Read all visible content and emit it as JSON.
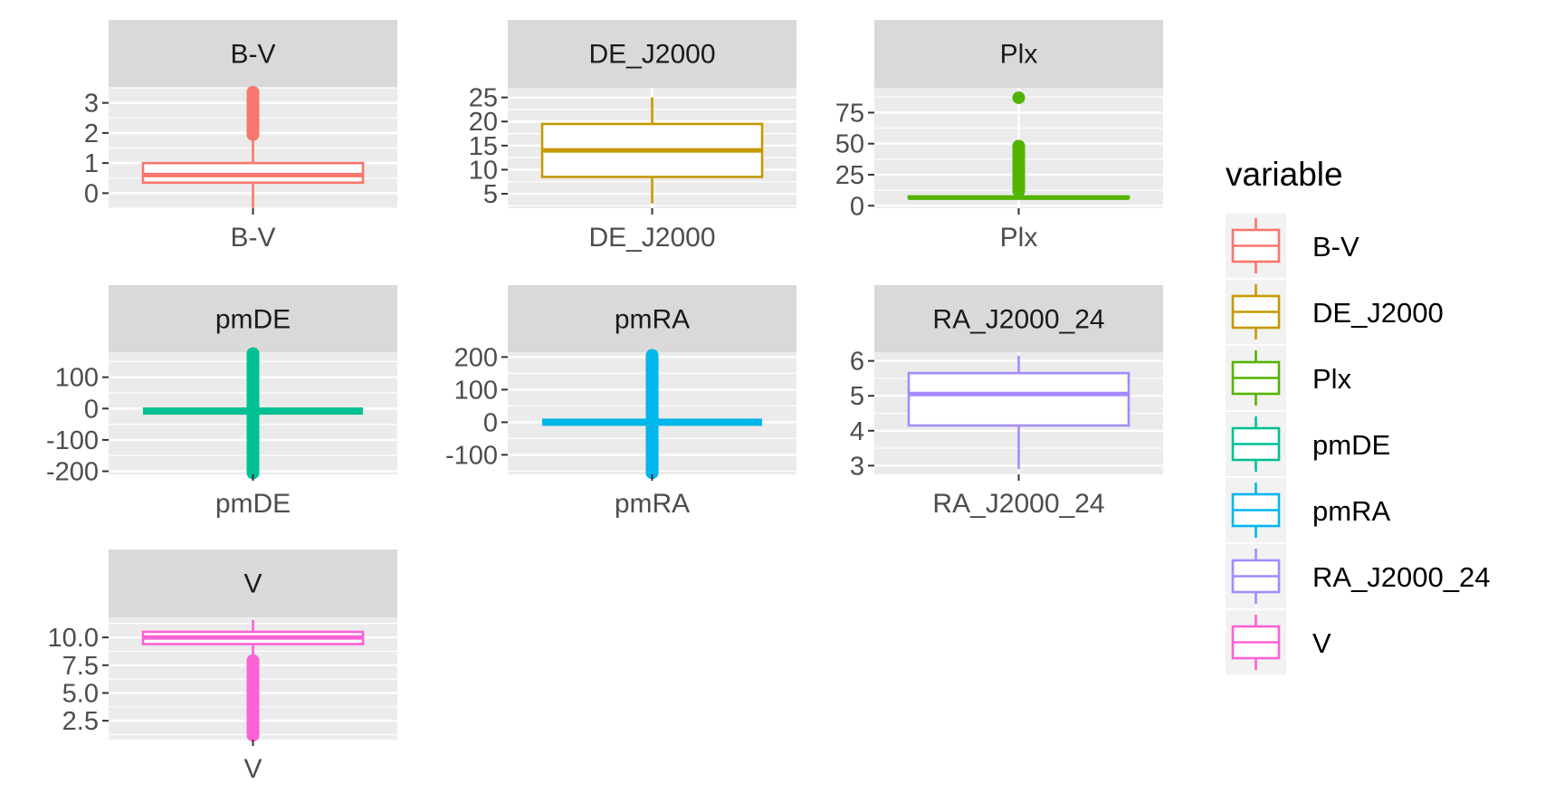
{
  "chart_data": {
    "type": "boxplot",
    "facets": [
      {
        "title": "B-V",
        "category": "B-V",
        "color": "#F8766D",
        "ylim": [
          -0.5,
          3.5
        ],
        "yticks": [
          "0",
          "1",
          "2",
          "3"
        ],
        "ytick_values": [
          0,
          1,
          2,
          3
        ],
        "box": {
          "min": -0.5,
          "q1": 0.35,
          "median": 0.6,
          "q3": 1.0,
          "max": 1.9
        },
        "outliers": [
          1.95,
          2.05,
          2.15,
          2.25,
          2.35,
          2.45,
          2.55,
          2.65,
          2.75,
          2.85,
          2.95,
          3.35
        ]
      },
      {
        "title": "DE_J2000",
        "category": "DE_J2000",
        "color": "#C49A00",
        "ylim": [
          2.0,
          27.0
        ],
        "yticks": [
          "5",
          "10",
          "15",
          "20",
          "25"
        ],
        "ytick_values": [
          5,
          10,
          15,
          20,
          25
        ],
        "box": {
          "min": 3.0,
          "q1": 8.5,
          "median": 14.0,
          "q3": 19.5,
          "max": 25.0
        },
        "outliers": []
      },
      {
        "title": "Plx",
        "category": "Plx",
        "color": "#53B400",
        "ylim": [
          -2,
          95
        ],
        "yticks": [
          "0",
          "25",
          "50",
          "75"
        ],
        "ytick_values": [
          0,
          25,
          50,
          75
        ],
        "box": {
          "min": 6.0,
          "q1": 6.0,
          "median": 6.5,
          "q3": 7.5,
          "max": 8.0
        },
        "outliers": [
          12,
          15,
          18,
          21,
          24,
          27,
          30,
          33,
          36,
          39,
          42,
          45,
          48,
          87
        ]
      },
      {
        "title": "pmDE",
        "category": "pmDE",
        "color": "#00C094",
        "ylim": [
          -210,
          180
        ],
        "yticks": [
          "-200",
          "-100",
          "0",
          "100"
        ],
        "ytick_values": [
          -200,
          -100,
          0,
          100
        ],
        "box": {
          "min": -8,
          "q1": -8,
          "median": -8,
          "q3": -8,
          "max": -8
        },
        "outliers": [
          -205,
          -180,
          -150,
          -120,
          -90,
          -60,
          -30,
          20,
          50,
          80,
          110,
          140,
          175
        ]
      },
      {
        "title": "pmRA",
        "category": "pmRA",
        "color": "#00B6EB",
        "ylim": [
          -160,
          215
        ],
        "yticks": [
          "-100",
          "0",
          "100",
          "200"
        ],
        "ytick_values": [
          -100,
          0,
          100,
          200
        ],
        "box": {
          "min": 0,
          "q1": 0,
          "median": 0,
          "q3": 0,
          "max": 0
        },
        "outliers": [
          -155,
          -120,
          -90,
          -60,
          -30,
          30,
          60,
          90,
          120,
          150,
          180,
          205
        ]
      },
      {
        "title": "RA_J2000_24",
        "category": "RA_J2000_24",
        "color": "#A58AFF",
        "ylim": [
          2.75,
          6.25
        ],
        "yticks": [
          "3",
          "4",
          "5",
          "6"
        ],
        "ytick_values": [
          3,
          4,
          5,
          6
        ],
        "box": {
          "min": 2.9,
          "q1": 4.15,
          "median": 5.05,
          "q3": 5.65,
          "max": 6.15
        },
        "outliers": []
      },
      {
        "title": "V",
        "category": "V",
        "color": "#FB61D7",
        "ylim": [
          0.8,
          11.8
        ],
        "yticks": [
          "2.5",
          "5.0",
          "7.5",
          "10.0"
        ],
        "ytick_values": [
          2.5,
          5.0,
          7.5,
          10.0
        ],
        "box": {
          "min": 8.3,
          "q1": 9.4,
          "median": 10.0,
          "q3": 10.5,
          "max": 11.6
        },
        "outliers": [
          1.2,
          2.0,
          2.5,
          3.0,
          3.5,
          4.0,
          4.5,
          5.0,
          5.5,
          6.0,
          6.5,
          7.0,
          7.5,
          7.9
        ]
      }
    ],
    "legend": {
      "title": "variable",
      "position": "right",
      "entries": [
        {
          "label": "B-V",
          "color": "#F8766D"
        },
        {
          "label": "DE_J2000",
          "color": "#C49A00"
        },
        {
          "label": "Plx",
          "color": "#53B400"
        },
        {
          "label": "pmDE",
          "color": "#00C094"
        },
        {
          "label": "pmRA",
          "color": "#00B6EB"
        },
        {
          "label": "RA_J2000_24",
          "color": "#A58AFF"
        },
        {
          "label": "V",
          "color": "#FB61D7"
        }
      ]
    },
    "grid": true,
    "panel_background": "#EBEBEB",
    "strip_background": "#D9D9D9"
  }
}
